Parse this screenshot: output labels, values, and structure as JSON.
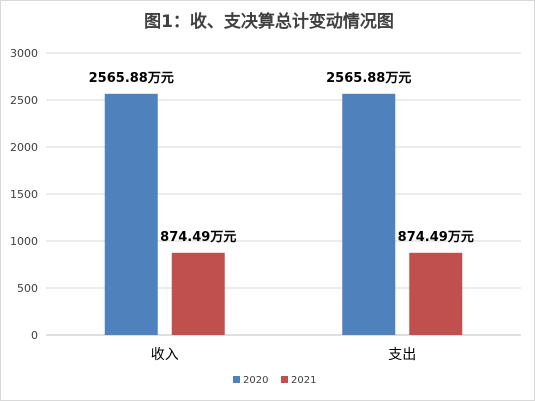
{
  "chart_data": {
    "type": "bar",
    "title": "图1：收、支决算总计变动情况图",
    "categories": [
      "收入",
      "支出"
    ],
    "series": [
      {
        "name": "2020",
        "color": "#4f81bd",
        "values": [
          2565.88,
          2565.88
        ]
      },
      {
        "name": "2021",
        "color": "#c0504d",
        "values": [
          874.49,
          874.49
        ]
      }
    ],
    "data_label_suffix": "万元",
    "ylim": [
      0,
      3000
    ],
    "yticks": [
      0,
      500,
      1000,
      1500,
      2000,
      2500,
      3000
    ],
    "grid": true,
    "legend_position": "bottom"
  }
}
